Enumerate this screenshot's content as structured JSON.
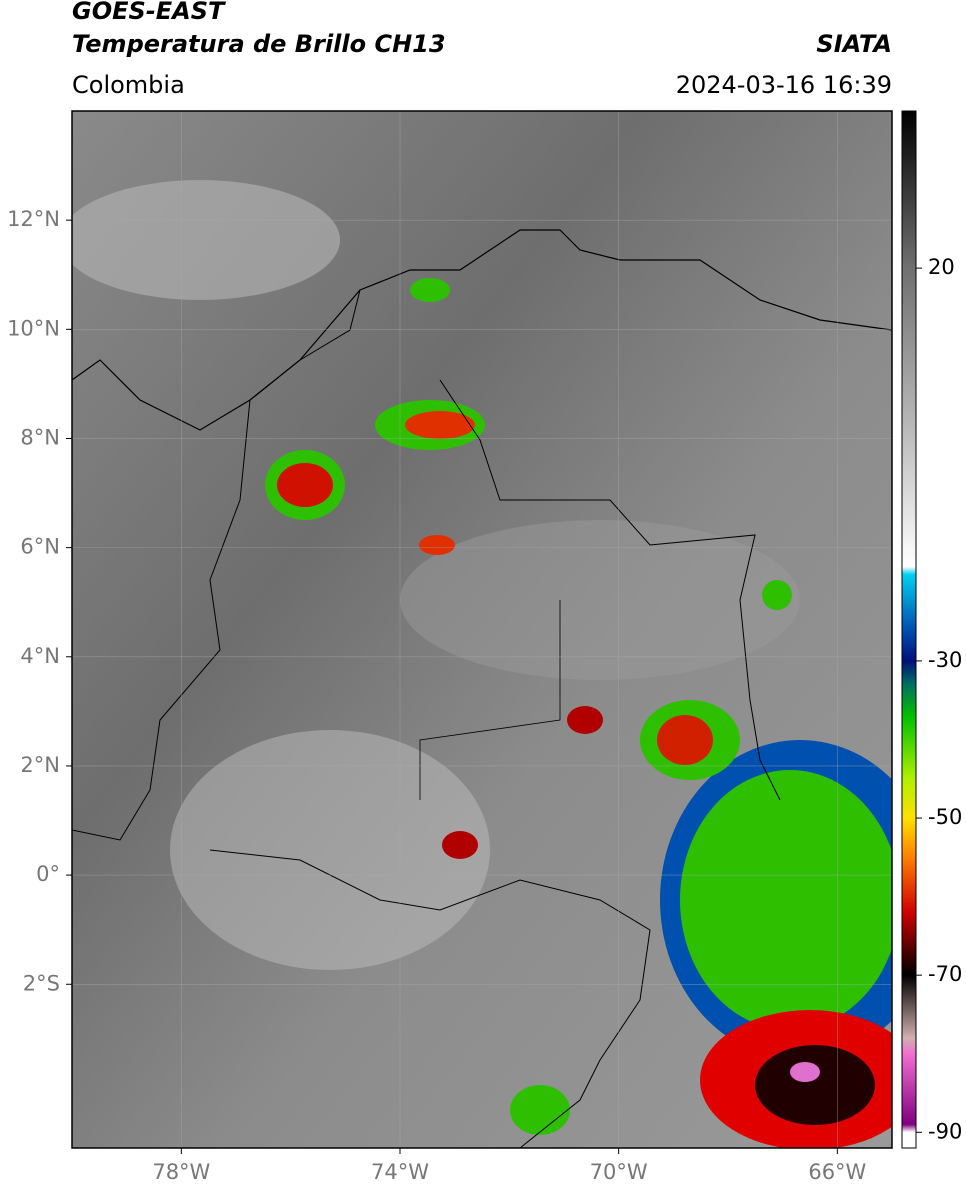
{
  "header": {
    "title": "GOES-EAST",
    "subtitle": "Temperatura de Brillo CH13",
    "region": "Colombia",
    "source": "SIATA",
    "datetime": "2024-03-16 16:39"
  },
  "map": {
    "xlim": [
      -80,
      -65
    ],
    "ylim": [
      -5,
      14
    ],
    "grid": true,
    "xticks": [
      {
        "value": -78,
        "label": "78°W"
      },
      {
        "value": -74,
        "label": "74°W"
      },
      {
        "value": -70,
        "label": "70°W"
      },
      {
        "value": -66,
        "label": "66°W"
      }
    ],
    "yticks": [
      {
        "value": 12,
        "label": "12°N"
      },
      {
        "value": 10,
        "label": "10°N"
      },
      {
        "value": 8,
        "label": "8°N"
      },
      {
        "value": 6,
        "label": "6°N"
      },
      {
        "value": 4,
        "label": "4°N"
      },
      {
        "value": 2,
        "label": "2°N"
      },
      {
        "value": 0,
        "label": "0°"
      },
      {
        "value": -2,
        "label": "2°S"
      }
    ]
  },
  "colorbar": {
    "lim": [
      -92,
      40
    ],
    "ticks": [
      20,
      -30,
      -50,
      -70,
      -90
    ],
    "stops": [
      {
        "value": 40,
        "color": "#000000"
      },
      {
        "value": 20,
        "color": "#707070"
      },
      {
        "value": 0,
        "color": "#b8b8b8"
      },
      {
        "value": -18,
        "color": "#ffffff"
      },
      {
        "value": -19,
        "color": "#00d0f0"
      },
      {
        "value": -26,
        "color": "#0050b0"
      },
      {
        "value": -30,
        "color": "#001078"
      },
      {
        "value": -33,
        "color": "#007060"
      },
      {
        "value": -37,
        "color": "#00c000"
      },
      {
        "value": -45,
        "color": "#b0f000"
      },
      {
        "value": -50,
        "color": "#ffe000"
      },
      {
        "value": -55,
        "color": "#ff8000"
      },
      {
        "value": -62,
        "color": "#d00000"
      },
      {
        "value": -68,
        "color": "#300000"
      },
      {
        "value": -70,
        "color": "#000000"
      },
      {
        "value": -78,
        "color": "#d0b0b0"
      },
      {
        "value": -80,
        "color": "#f070d0"
      },
      {
        "value": -89,
        "color": "#800080"
      },
      {
        "value": -90,
        "color": "#ffffff"
      },
      {
        "value": -92,
        "color": "#ffffff"
      }
    ]
  }
}
